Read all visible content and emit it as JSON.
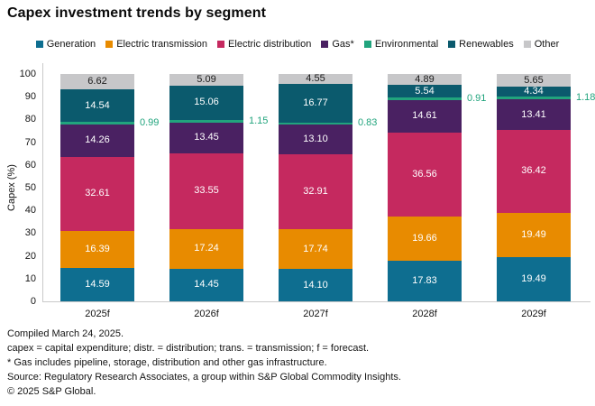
{
  "title": "Capex investment trends by segment",
  "chart_data": {
    "type": "stacked_bar",
    "title": "Capex investment trends by segment",
    "categories": [
      "2025f",
      "2026f",
      "2027f",
      "2028f",
      "2029f"
    ],
    "series": [
      {
        "name": "Generation",
        "color": "#0e6e90",
        "label_color": "#ffffff",
        "values": [
          14.59,
          14.45,
          14.1,
          17.83,
          19.49
        ]
      },
      {
        "name": "Electric transmission",
        "color": "#e88b00",
        "label_color": "#ffffff",
        "values": [
          16.39,
          17.24,
          17.74,
          19.66,
          19.49
        ]
      },
      {
        "name": "Electric distribution",
        "color": "#c5295f",
        "label_color": "#ffffff",
        "values": [
          32.61,
          33.55,
          32.91,
          36.56,
          36.42
        ]
      },
      {
        "name": "Gas*",
        "color": "#4a2162",
        "label_color": "#ffffff",
        "values": [
          14.26,
          13.45,
          13.1,
          14.61,
          13.41
        ]
      },
      {
        "name": "Environmental",
        "color": "#21a47d",
        "label_color": "#21a47d",
        "label_outside": true,
        "values": [
          0.99,
          1.15,
          0.83,
          0.91,
          1.18
        ]
      },
      {
        "name": "Renewables",
        "color": "#0b5a6d",
        "label_color": "#ffffff",
        "values": [
          14.54,
          15.06,
          16.77,
          5.54,
          4.34
        ]
      },
      {
        "name": "Other",
        "color": "#c7c7c9",
        "label_color": "#1a1a1a",
        "values": [
          6.62,
          5.09,
          4.55,
          4.89,
          5.65
        ]
      }
    ],
    "xlabel": "",
    "ylabel": "Capex (%)",
    "ylim": [
      0,
      100
    ],
    "yticks": [
      0,
      10,
      20,
      30,
      40,
      50,
      60,
      70,
      80,
      90,
      100
    ],
    "grid": false,
    "legend_position": "top"
  },
  "footnotes": [
    "Compiled March 24, 2025.",
    "capex = capital expenditure; distr. = distribution; trans. = transmission; f = forecast.",
    "* Gas includes pipeline, storage, distribution and other gas infrastructure.",
    "Source: Regulatory Research Associates, a group within S&P Global Commodity Insights.",
    "© 2025 S&P Global."
  ]
}
